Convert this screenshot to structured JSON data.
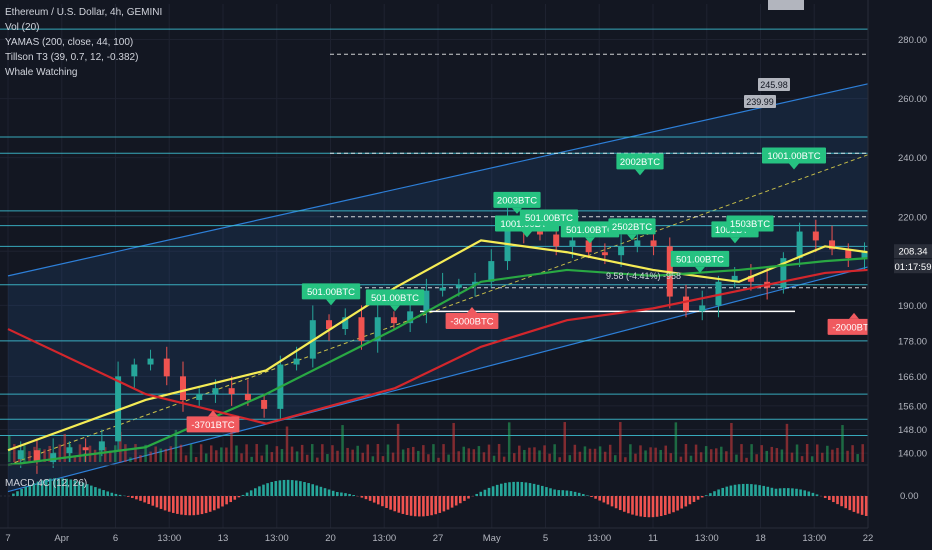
{
  "legend": {
    "symbol": "Ethereum / U.S. Dollar, 4h, GEMINI",
    "volume": "Vol (20)",
    "yamas": "YAMAS (200, close, 44, 100)",
    "tillson": "Tillson T3 (39, 0.7, 12, -0.382)",
    "whale": "Whale Watching"
  },
  "macd_label": "MACD 4C (12, 26)",
  "colors": {
    "background": "#131722",
    "buy_bubble": "#26c281",
    "sell_bubble": "#f05a5f",
    "price_line": "#ffffff",
    "ma_yellow": "#f5ec55",
    "ma_green": "#29a843",
    "ma_red": "#d3262c",
    "channel": "#2d7fd8",
    "hline": "#3ec3d6"
  },
  "chart_data": {
    "type": "candlestick",
    "ylim": [
      136,
      292
    ],
    "y_ticks": [
      140,
      148,
      156,
      166,
      178,
      190,
      208.34,
      220,
      240,
      260,
      280
    ],
    "y_tick_labels": [
      "140.00",
      "148.00",
      "156.00",
      "166.00",
      "178.00",
      "190.00",
      "208.34",
      "220.00",
      "240.00",
      "260.00",
      "280.00"
    ],
    "current_price_label": "208.34",
    "countdown_label": "01:17:59",
    "macd_tick_label": "0.00",
    "x_tick_labels": [
      "7",
      "Apr",
      "6",
      "13:00",
      "13",
      "13:00",
      "20",
      "13:00",
      "27",
      "May",
      "5",
      "13:00",
      "11",
      "13:00",
      "18",
      "13:00",
      "22"
    ],
    "close_path": [
      [
        "Mar 30",
        138
      ],
      [
        "Mar 31",
        141
      ],
      [
        "Apr 1",
        137
      ],
      [
        "Apr 2",
        140
      ],
      [
        "Apr 3",
        142
      ],
      [
        "Apr 4",
        141
      ],
      [
        "Apr 5",
        144
      ],
      [
        "Apr 6",
        166
      ],
      [
        "Apr 7",
        170
      ],
      [
        "Apr 8",
        172
      ],
      [
        "Apr 9",
        166
      ],
      [
        "Apr 10",
        158
      ],
      [
        "Apr 11",
        160
      ],
      [
        "Apr 12",
        162
      ],
      [
        "Apr 13",
        160
      ],
      [
        "Apr 14",
        158
      ],
      [
        "Apr 15",
        155
      ],
      [
        "Apr 16",
        170
      ],
      [
        "Apr 17",
        172
      ],
      [
        "Apr 18",
        185
      ],
      [
        "Apr 19",
        182
      ],
      [
        "Apr 20",
        186
      ],
      [
        "Apr 21",
        178
      ],
      [
        "Apr 22",
        186
      ],
      [
        "Apr 23",
        184
      ],
      [
        "Apr 24",
        188
      ],
      [
        "Apr 25",
        195
      ],
      [
        "Apr 26",
        196
      ],
      [
        "Apr 27",
        197
      ],
      [
        "Apr 28",
        198
      ],
      [
        "Apr 29",
        205
      ],
      [
        "Apr 30",
        218
      ],
      [
        "May 1",
        215
      ],
      [
        "May 2",
        214
      ],
      [
        "May 3",
        210
      ],
      [
        "May 4",
        212
      ],
      [
        "May 5",
        208
      ],
      [
        "May 6",
        207
      ],
      [
        "May 7",
        210
      ],
      [
        "May 8",
        212
      ],
      [
        "May 9",
        210
      ],
      [
        "May 10",
        193
      ],
      [
        "May 11",
        188
      ],
      [
        "May 12",
        190
      ],
      [
        "May 13",
        198
      ],
      [
        "May 14",
        200
      ],
      [
        "May 15",
        198
      ],
      [
        "May 16",
        196
      ],
      [
        "May 17",
        206
      ],
      [
        "May 18",
        215
      ],
      [
        "May 19",
        212
      ],
      [
        "May 20",
        209
      ],
      [
        "May 21",
        206
      ],
      [
        "May 22",
        208.34
      ]
    ],
    "moving_averages": [
      {
        "name": "yellow",
        "values": [
          [
            0,
            141
          ],
          [
            0.16,
            158
          ],
          [
            0.3,
            168
          ],
          [
            0.45,
            196
          ],
          [
            0.55,
            212
          ],
          [
            0.65,
            208
          ],
          [
            0.75,
            202
          ],
          [
            0.85,
            198
          ],
          [
            0.95,
            210
          ],
          [
            1,
            208
          ]
        ]
      },
      {
        "name": "green",
        "values": [
          [
            0,
            136
          ],
          [
            0.16,
            142
          ],
          [
            0.3,
            160
          ],
          [
            0.45,
            182
          ],
          [
            0.55,
            198
          ],
          [
            0.65,
            202
          ],
          [
            0.75,
            200
          ],
          [
            0.85,
            202
          ],
          [
            0.95,
            205
          ],
          [
            1,
            206
          ]
        ]
      },
      {
        "name": "red",
        "values": [
          [
            0,
            182
          ],
          [
            0.16,
            160
          ],
          [
            0.3,
            150
          ],
          [
            0.45,
            162
          ],
          [
            0.55,
            176
          ],
          [
            0.65,
            185
          ],
          [
            0.75,
            189
          ],
          [
            0.85,
            195
          ],
          [
            0.95,
            201
          ],
          [
            1,
            202
          ]
        ]
      }
    ],
    "channel": {
      "upper": [
        [
          0,
          200
        ],
        [
          1,
          265
        ]
      ],
      "lower": [
        [
          0,
          127
        ],
        [
          1,
          203
        ]
      ],
      "mid": [
        [
          0,
          136
        ],
        [
          1,
          241
        ]
      ]
    },
    "horizontal_levels": [
      283.5,
      247,
      241.5,
      222,
      217,
      210,
      197,
      178,
      160,
      151.5,
      146
    ],
    "dashed_levels": [
      275,
      241.5,
      220,
      196
    ],
    "annotations": [
      {
        "label": "2003BTC",
        "type": "buy",
        "price": 221
      },
      {
        "label": "1001.00BTC",
        "type": "buy",
        "price": 213
      },
      {
        "label": "501.00BTC",
        "type": "buy",
        "price": 215
      },
      {
        "label": "501.00BTC",
        "type": "buy",
        "price": 211
      },
      {
        "label": "2502BTC",
        "type": "buy",
        "price": 212
      },
      {
        "label": "2002BTC",
        "type": "buy",
        "price": 234
      },
      {
        "label": "1001.00BTC",
        "type": "buy",
        "price": 236
      },
      {
        "label": "1001BTC",
        "type": "buy",
        "price": 211
      },
      {
        "label": "1503BTC",
        "type": "buy",
        "price": 213
      },
      {
        "label": "501.00BTC",
        "type": "buy",
        "price": 201
      },
      {
        "label": "501.00BTC",
        "type": "buy",
        "price": 190
      },
      {
        "label": "501.00BTC",
        "type": "buy",
        "price": 188
      },
      {
        "label": "-3000BTC",
        "type": "sell",
        "price": 180
      },
      {
        "label": "-2000BTC",
        "type": "sell",
        "price": 178
      },
      {
        "label": "-3701BTC",
        "type": "sell",
        "price": 145
      }
    ],
    "price_note": "9.58 (-4.41%) -958",
    "price_tags": [
      "245.98",
      "239.99"
    ]
  }
}
